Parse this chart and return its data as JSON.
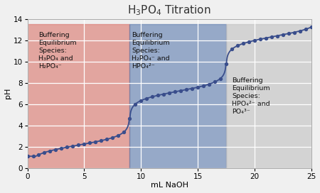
{
  "title_math": "H$_3$PO$_4$ Titration",
  "xlabel": "mL NaOH",
  "ylabel": "pH",
  "xlim": [
    0,
    25
  ],
  "ylim": [
    0,
    14
  ],
  "xticks": [
    0,
    5,
    10,
    15,
    20,
    25
  ],
  "yticks": [
    0,
    2,
    4,
    6,
    8,
    10,
    12,
    14
  ],
  "bg_color": "#f0f0f0",
  "plot_bg_color": "#f0f0f0",
  "region1": {
    "xmin": 0,
    "xmax": 9.0,
    "color": "#d9736a",
    "alpha": 0.6,
    "ymax_abs": 13.5
  },
  "region2": {
    "xmin": 9.0,
    "xmax": 17.5,
    "color": "#5b7aae",
    "alpha": 0.6,
    "ymax_abs": 13.5
  },
  "region3": {
    "xmin": 17.5,
    "xmax": 25,
    "color": "#c0c0c0",
    "alpha": 0.6,
    "ymax_abs": 13.5
  },
  "line_color": "#3a4e8c",
  "dot_color": "#3a4e8c",
  "title_fontsize": 11,
  "axis_label_fontsize": 8,
  "tick_fontsize": 7.5,
  "annotation_fontsize": 6.8,
  "ann1_x": 1.0,
  "ann1_y": 12.8,
  "ann2_x": 9.2,
  "ann2_y": 12.8,
  "ann3_x": 18.0,
  "ann3_y": 8.5,
  "ann1_text": "Buffering\nEquilibrium\nSpecies:\nH₃PO₄ and\nH₂PO₄⁻",
  "ann2_text": "Buffering\nEquilibrium\nSpecies:\nH₂PO₄⁻ and\nHPO₄²⁻",
  "ann3_text": "Buffering\nEquilibrium\nSpecies:\nHPO₄²⁻ and\nPO₄³⁻"
}
